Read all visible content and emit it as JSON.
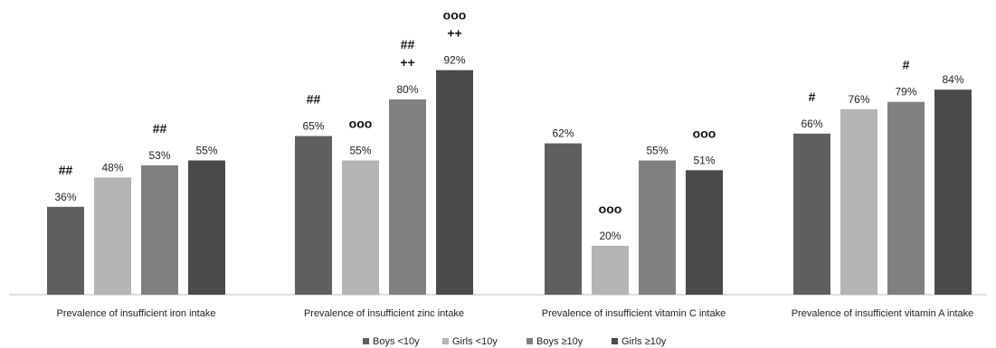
{
  "chart_data": {
    "type": "bar",
    "title": "",
    "xlabel": "",
    "ylabel": "",
    "ylim": [
      0,
      100
    ],
    "grid": false,
    "legend_position": "bottom",
    "categories": [
      "Prevalence of insufficient iron intake",
      "Prevalence of insufficient zinc intake",
      "Prevalence of insufficient vitamin C intake",
      "Prevalence of insufficient vitamin A intake"
    ],
    "series": [
      {
        "name": "Boys <10y",
        "color": "#5f5f5f",
        "values": [
          36,
          65,
          62,
          66
        ],
        "labels": [
          "36%",
          "65%",
          "62%",
          "66%"
        ]
      },
      {
        "name": "Girls <10y",
        "color": "#b4b4b4",
        "values": [
          48,
          55,
          20,
          76
        ],
        "labels": [
          "48%",
          "55%",
          "20%",
          "76%"
        ]
      },
      {
        "name": "Boys ≥10y",
        "color": "#808080",
        "values": [
          53,
          80,
          55,
          79
        ],
        "labels": [
          "53%",
          "80%",
          "55%",
          "79%"
        ]
      },
      {
        "name": "Girls ≥10y",
        "color": "#4a4a4a",
        "values": [
          55,
          92,
          51,
          84
        ],
        "labels": [
          "55%",
          "92%",
          "51%",
          "84%"
        ]
      }
    ],
    "annotations": [
      {
        "category": 0,
        "series": 0,
        "lines": [
          "##"
        ]
      },
      {
        "category": 0,
        "series": 2,
        "lines": [
          "##"
        ]
      },
      {
        "category": 1,
        "series": 0,
        "lines": [
          "##"
        ]
      },
      {
        "category": 1,
        "series": 1,
        "lines": [
          "ooo"
        ]
      },
      {
        "category": 1,
        "series": 2,
        "lines": [
          "##",
          "++"
        ]
      },
      {
        "category": 1,
        "series": 3,
        "lines": [
          "ooo",
          "++"
        ]
      },
      {
        "category": 2,
        "series": 1,
        "lines": [
          "ooo"
        ]
      },
      {
        "category": 2,
        "series": 3,
        "lines": [
          "ooo"
        ]
      },
      {
        "category": 3,
        "series": 0,
        "lines": [
          "#"
        ]
      },
      {
        "category": 3,
        "series": 2,
        "lines": [
          "#"
        ]
      }
    ]
  }
}
